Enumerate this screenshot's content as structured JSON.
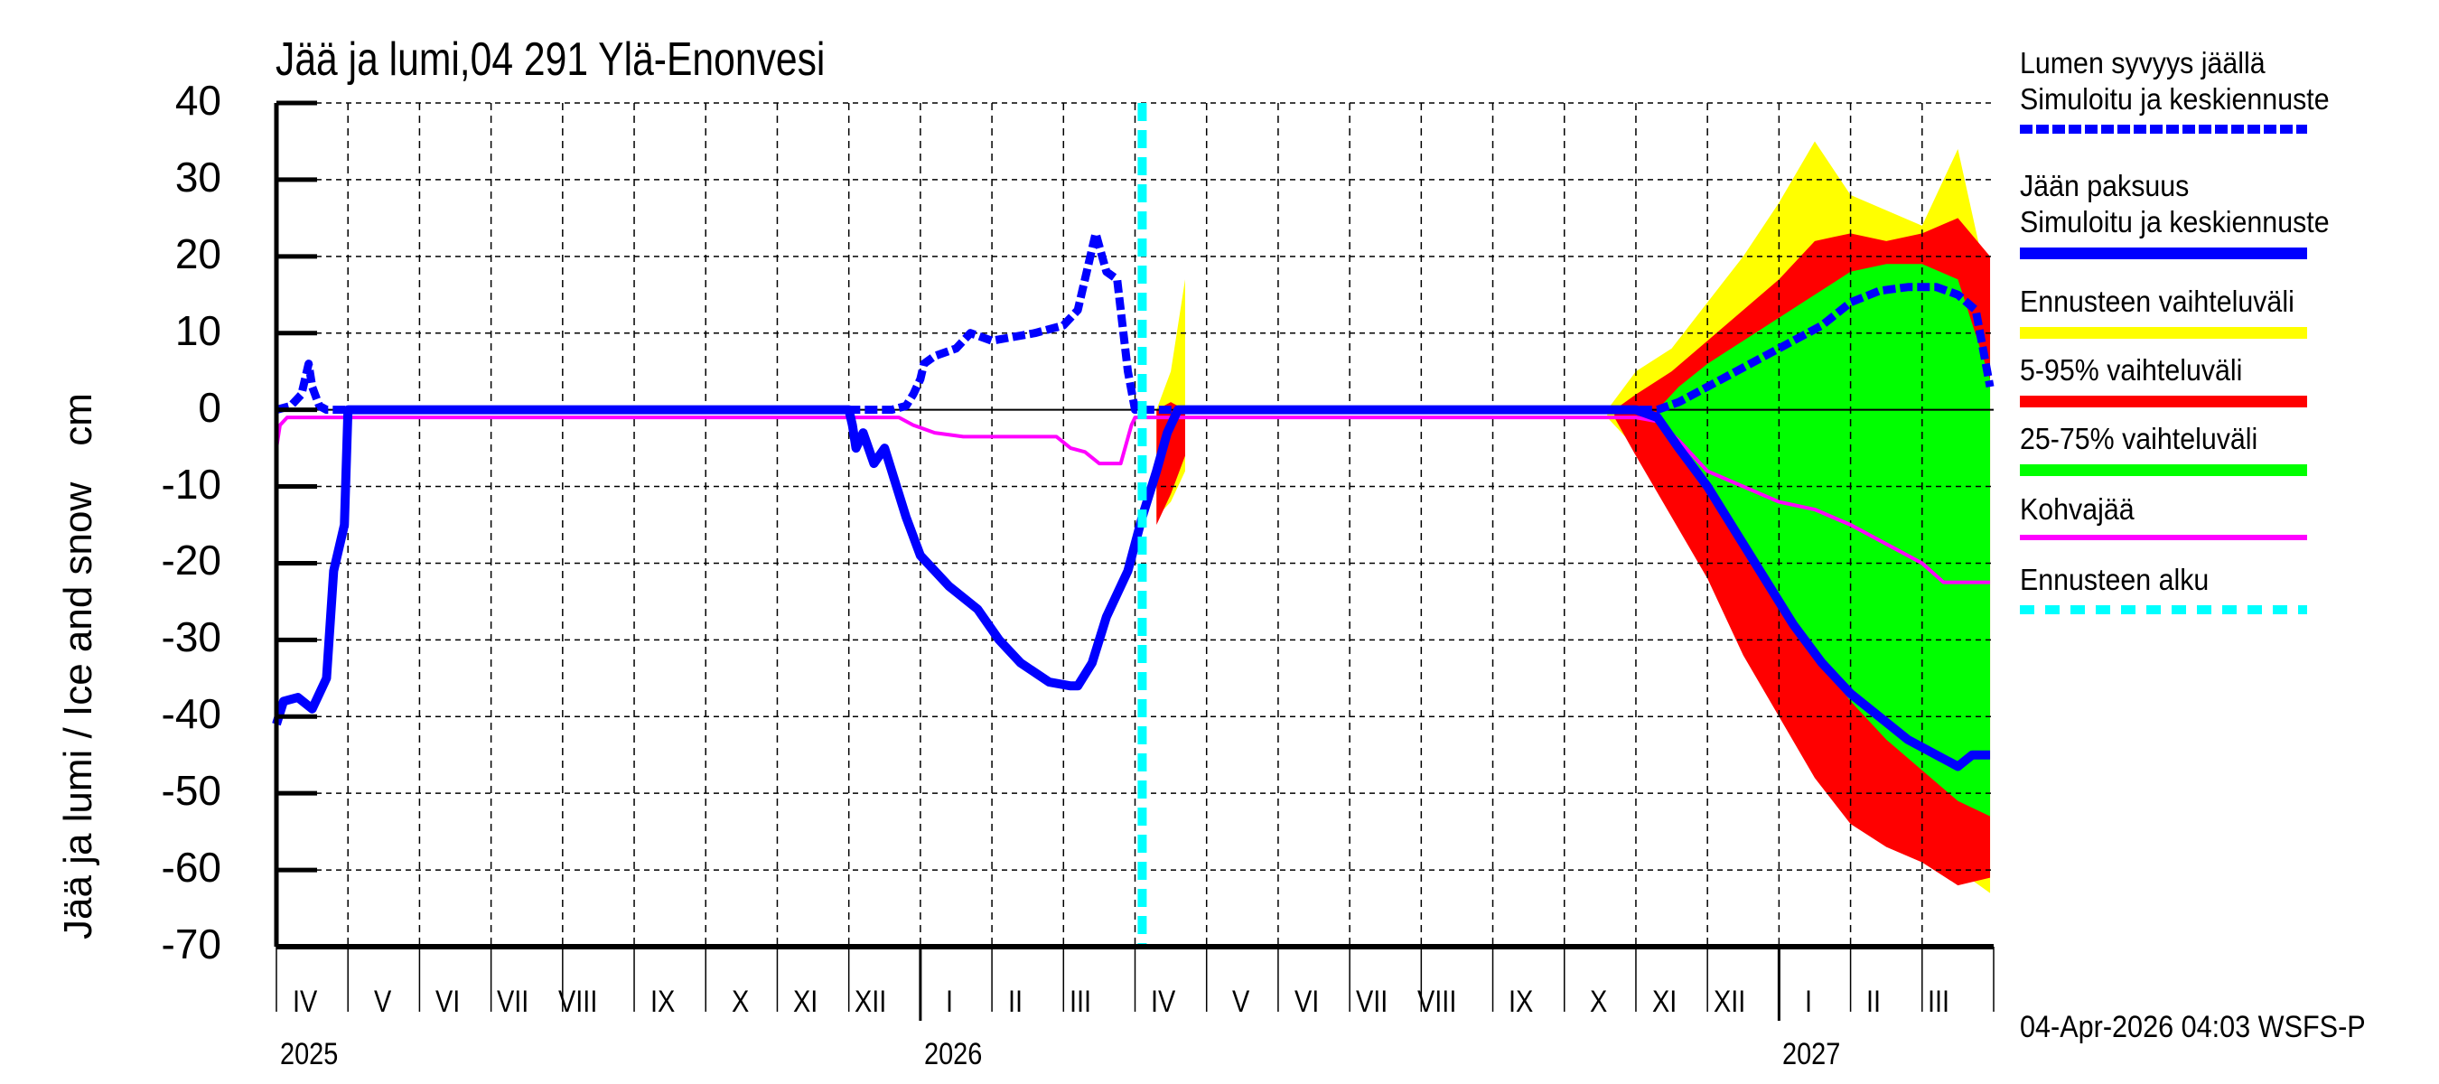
{
  "header": {
    "title": "Jää ja lumi,04 291 Ylä-Enonvesi"
  },
  "axes": {
    "y_label": "Jää ja lumi / Ice and snow",
    "y_unit": "cm",
    "y_ticks": [
      "40",
      "30",
      "20",
      "10",
      "0",
      "-10",
      "-20",
      "-30",
      "-40",
      "-50",
      "-60",
      "-70"
    ],
    "x_month_labels": [
      "IV",
      "V",
      "VI",
      "VII",
      "VIII",
      "IX",
      "X",
      "XI",
      "XII",
      "I",
      "II",
      "III",
      "IV",
      "V",
      "VI",
      "VII",
      "VIII",
      "IX",
      "X",
      "XI",
      "XII",
      "I",
      "II",
      "III"
    ],
    "x_year_labels": [
      {
        "label": "2025",
        "month_index": 0
      },
      {
        "label": "2026",
        "month_index": 9
      },
      {
        "label": "2027",
        "month_index": 21
      }
    ]
  },
  "legend": {
    "items": [
      {
        "line1": "Lumen syvyys jäällä",
        "line2": "Simuloitu ja keskiennuste",
        "color": "#0000ff",
        "style": "dashed"
      },
      {
        "line1": "Jään paksuus",
        "line2": "Simuloitu ja keskiennuste",
        "color": "#0000ff",
        "style": "solid"
      },
      {
        "line1": "Ennusteen vaihteluväli",
        "line2": "",
        "color": "#ffff00",
        "style": "band"
      },
      {
        "line1": "5-95% vaihteluväli",
        "line2": "",
        "color": "#ff0000",
        "style": "band"
      },
      {
        "line1": "25-75% vaihteluväli",
        "line2": "",
        "color": "#00ff00",
        "style": "band"
      },
      {
        "line1": "Kohvajää",
        "line2": "",
        "color": "#ff00ff",
        "style": "thin"
      },
      {
        "line1": "Ennusteen alku",
        "line2": "",
        "color": "#00ffff",
        "style": "dotted"
      }
    ]
  },
  "footer": {
    "timestamp": "04-Apr-2026 04:03 WSFS-P"
  },
  "colors": {
    "snow": "#0000ff",
    "ice": "#0000ff",
    "range_full": "#ffff00",
    "range_5_95": "#ff0000",
    "range_25_75": "#00ff00",
    "slush_ice": "#ff00ff",
    "forecast_start": "#00ffff"
  },
  "chart_data": {
    "type": "area",
    "title": "Jää ja lumi,04 291 Ylä-Enonvesi",
    "xlabel": "",
    "ylabel": "Jää ja lumi / Ice and snow cm",
    "ylim": [
      -70,
      40
    ],
    "x_unit": "months since 2025-04-01",
    "xlim": [
      0,
      24
    ],
    "grid": true,
    "forecast_start_x": 12.1,
    "forecast_start_label": "Ennusteen alku (2026-04-04)",
    "series": [
      {
        "name": "Lumen syvyys jäällä (snow depth on ice)",
        "style": "dashed",
        "x": [
          0.0,
          0.2,
          0.35,
          0.45,
          0.5,
          0.6,
          0.7,
          1.0,
          8.6,
          8.8,
          8.9,
          9.0,
          9.05,
          9.2,
          9.5,
          9.7,
          10.0,
          10.3,
          10.6,
          11.0,
          11.2,
          11.35,
          11.45,
          11.6,
          11.75,
          11.9,
          12.0,
          13.0,
          19.0,
          19.3,
          19.6,
          20.0,
          20.4,
          20.8,
          21.2,
          21.6,
          22.0,
          22.4,
          22.8,
          23.2,
          23.5,
          23.75,
          23.85,
          23.95
        ],
        "y": [
          0,
          0.5,
          2,
          6,
          3,
          0.5,
          0,
          0,
          0,
          0.5,
          2,
          4,
          6,
          7,
          8,
          10,
          9,
          9.5,
          10,
          11,
          13,
          19,
          23,
          18,
          17,
          5,
          0,
          0,
          0,
          0,
          1,
          3,
          5,
          7,
          9,
          11,
          14,
          15.5,
          16,
          16,
          15,
          13,
          8,
          3
        ]
      },
      {
        "name": "Jään paksuus (ice thickness, negative)",
        "style": "solid",
        "x": [
          0.0,
          0.1,
          0.3,
          0.5,
          0.7,
          0.8,
          0.95,
          1.0,
          8.0,
          8.05,
          8.1,
          8.2,
          8.35,
          8.5,
          8.6,
          8.8,
          9.0,
          9.4,
          9.8,
          10.1,
          10.4,
          10.8,
          11.1,
          11.2,
          11.4,
          11.6,
          11.9,
          12.1,
          12.3,
          12.45,
          12.6,
          19.0,
          19.3,
          19.6,
          20.0,
          20.4,
          20.8,
          21.2,
          21.6,
          22.0,
          22.4,
          22.8,
          23.2,
          23.5,
          23.7,
          23.95
        ],
        "y": [
          -41,
          -38,
          -37.5,
          -39,
          -35,
          -21,
          -15,
          0,
          0,
          -2,
          -5,
          -3,
          -7,
          -5,
          -8,
          -14,
          -19,
          -23,
          -26,
          -30,
          -33,
          -35.5,
          -36,
          -36,
          -33,
          -27,
          -21,
          -14,
          -8,
          -3,
          0,
          0,
          -1,
          -5,
          -10,
          -16,
          -22,
          -28,
          -33,
          -37,
          -40,
          -43,
          -45,
          -46.5,
          -45,
          -45
        ]
      },
      {
        "name": "Kohvajää (slush ice, negative)",
        "style": "thin",
        "x": [
          0.0,
          0.05,
          0.15,
          1.0,
          8.7,
          8.9,
          9.2,
          9.6,
          10.0,
          10.5,
          10.9,
          11.1,
          11.3,
          11.5,
          11.8,
          11.95,
          12.0,
          19.0,
          19.3,
          19.6,
          20.0,
          20.5,
          21.0,
          21.5,
          22.0,
          22.4,
          22.8,
          23.0,
          23.3,
          23.95
        ],
        "y": [
          -5,
          -2,
          -1,
          -1,
          -1,
          -2,
          -3,
          -3.5,
          -3.5,
          -3.5,
          -3.5,
          -5,
          -5.5,
          -7,
          -7,
          -2,
          -1,
          -1,
          -1.5,
          -4,
          -8,
          -10,
          -12,
          -13,
          -15,
          -17,
          -19,
          -20,
          -22.5,
          -22.5
        ]
      },
      {
        "name": "Ennusteen vaihteluväli (full range) upper",
        "x": [
          12.3,
          12.5,
          12.7,
          18.6,
          19.0,
          19.5,
          20.0,
          20.5,
          21.0,
          21.5,
          22.0,
          22.5,
          23.0,
          23.5,
          23.95
        ],
        "y": [
          0,
          5,
          17,
          0,
          5,
          8,
          14,
          20,
          27,
          35,
          28,
          26,
          24,
          34,
          15
        ]
      },
      {
        "name": "Ennusteen vaihteluväli (full range) lower",
        "x": [
          12.3,
          12.5,
          12.7,
          18.6,
          19.0,
          19.5,
          20.0,
          20.5,
          21.0,
          21.5,
          22.0,
          22.5,
          23.0,
          23.5,
          23.95
        ],
        "y": [
          -14,
          -12,
          -8,
          -1,
          -5,
          -12,
          -20,
          -30,
          -38,
          -46,
          -53,
          -56,
          -58,
          -60,
          -63
        ]
      },
      {
        "name": "5-95% upper",
        "x": [
          12.3,
          12.5,
          12.7,
          18.7,
          19.0,
          19.5,
          20.0,
          20.5,
          21.0,
          21.5,
          22.0,
          22.5,
          23.0,
          23.5,
          23.95
        ],
        "y": [
          0,
          1,
          0,
          0,
          2,
          5,
          9,
          13,
          17,
          22,
          23,
          22,
          23,
          25,
          20
        ],
        "lower_y": [
          -15,
          -11,
          -6,
          -1,
          -6,
          -14,
          -22,
          -32,
          -40,
          -48,
          -54,
          -57,
          -59,
          -62,
          -61
        ]
      },
      {
        "name": "25-75% band",
        "x": [
          19.3,
          19.6,
          20.0,
          20.5,
          21.0,
          21.5,
          22.0,
          22.5,
          23.0,
          23.5,
          23.95
        ],
        "upper_y": [
          0,
          3,
          6,
          9,
          12,
          15,
          18,
          19,
          19,
          17,
          4
        ],
        "lower_y": [
          0,
          -5,
          -11,
          -18,
          -25,
          -32,
          -38,
          -43,
          -47,
          -51,
          -53
        ]
      }
    ]
  }
}
